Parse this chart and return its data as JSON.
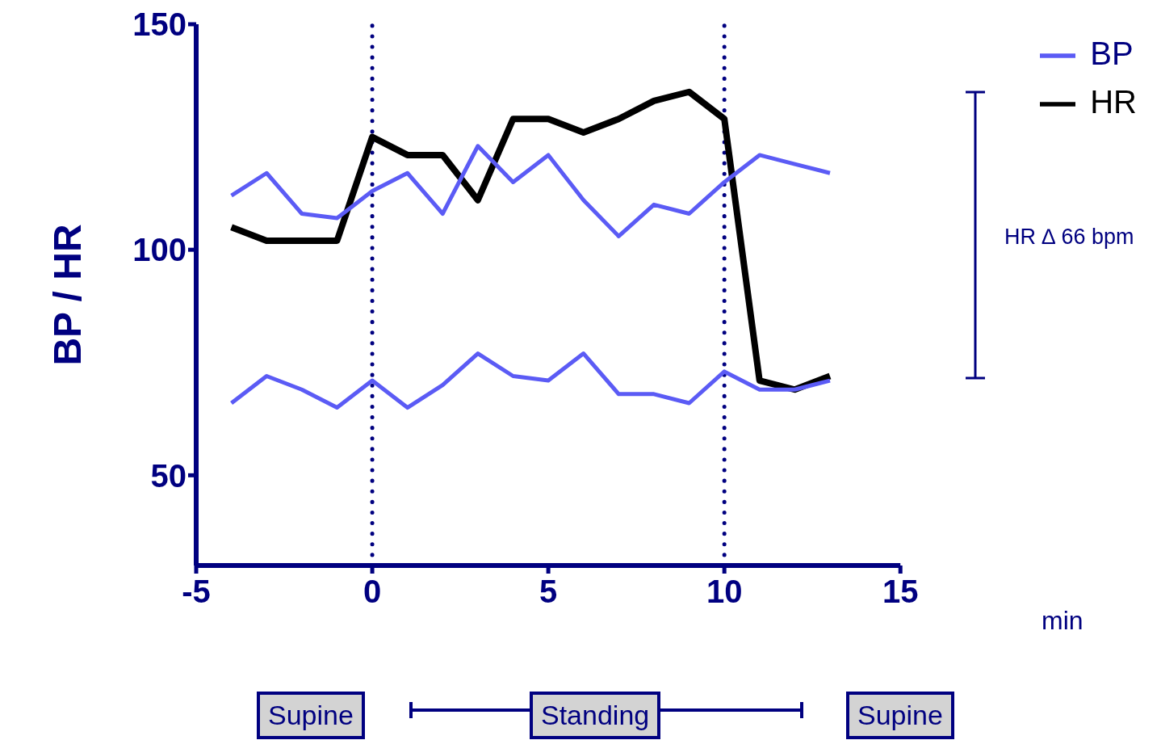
{
  "chart_data": {
    "type": "line",
    "ylabel": "BP / HR",
    "xlabel": "min",
    "x": [
      -4,
      -3,
      -2,
      -1,
      0,
      1,
      2,
      3,
      4,
      5,
      6,
      7,
      8,
      9,
      10,
      11,
      12,
      13
    ],
    "series": [
      {
        "name": "HR",
        "color": "#000000",
        "values": [
          105,
          102,
          102,
          102,
          125,
          121,
          121,
          111,
          129,
          129,
          126,
          129,
          133,
          135,
          129,
          71,
          69,
          72
        ]
      },
      {
        "name": "BP",
        "color": "#5b5bf5",
        "values": [
          112,
          117,
          108,
          107,
          113,
          117,
          108,
          123,
          115,
          121,
          111,
          103,
          110,
          108,
          115,
          121,
          119,
          117
        ]
      },
      {
        "color": "#5b5bf5",
        "values": [
          66,
          72,
          69,
          65,
          71,
          65,
          70,
          77,
          72,
          71,
          77,
          68,
          68,
          66,
          73,
          69,
          69,
          71
        ]
      }
    ],
    "xlim": [
      -5,
      15
    ],
    "xticks": [
      -5,
      0,
      5,
      10,
      15
    ],
    "ylim": [
      30,
      150
    ],
    "yticks": [
      50,
      100,
      150
    ],
    "ref_lines": [
      {
        "axis": "x",
        "value": 0,
        "color": "#000080",
        "line_style": "dotted"
      },
      {
        "axis": "x",
        "value": 10,
        "color": "#000080",
        "line_style": "dotted"
      }
    ],
    "annotations": [
      "HR ∆ 66 bpm",
      "Supine",
      "Standing",
      "Supine"
    ],
    "legend": "top right",
    "grid": false,
    "marker": "none",
    "line_style": "solid"
  }
}
